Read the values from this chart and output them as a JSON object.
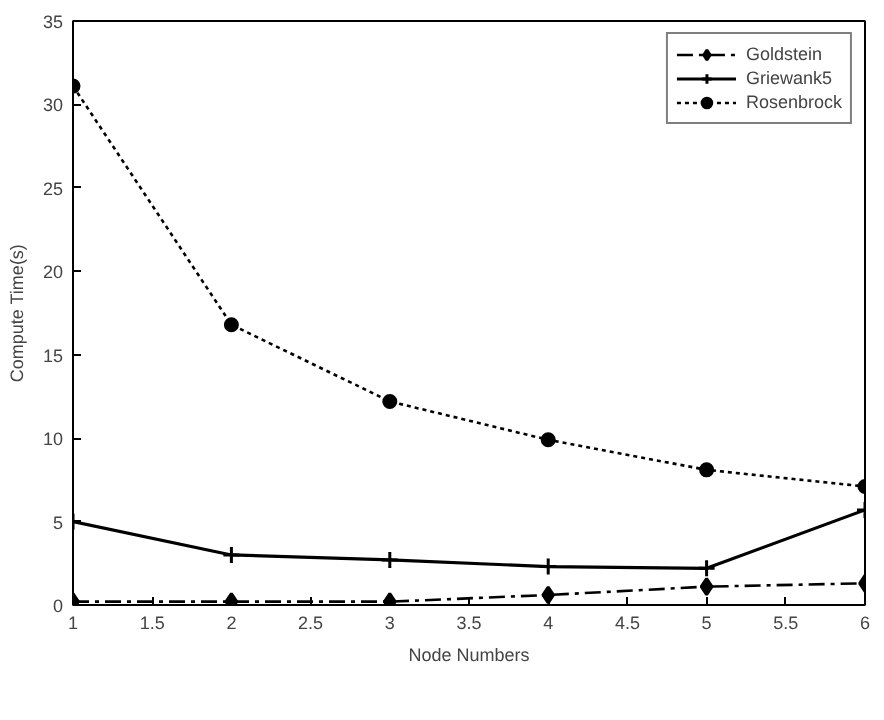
{
  "chart_data": {
    "type": "line",
    "xlabel": "Node Numbers",
    "ylabel": "Compute Time(s)",
    "x": [
      1,
      2,
      3,
      4,
      5,
      6
    ],
    "series": [
      {
        "name": "Goldstein",
        "color": "#000000",
        "values": [
          0.2,
          0.2,
          0.2,
          0.6,
          1.1,
          1.3
        ],
        "marker": "diamond",
        "line_style": "dashed"
      },
      {
        "name": "Griewank5",
        "color": "#000000",
        "values": [
          5.0,
          3.0,
          2.7,
          2.3,
          2.2,
          5.7
        ],
        "marker": "cross",
        "line_style": "solid"
      },
      {
        "name": "Rosenbrock",
        "color": "#000000",
        "values": [
          31.1,
          16.8,
          12.2,
          9.9,
          8.1,
          7.1
        ],
        "marker": "circle",
        "line_style": "dotted"
      }
    ],
    "xlim": [
      1,
      6
    ],
    "xticks": [
      1,
      1.5,
      2,
      2.5,
      3,
      3.5,
      4,
      4.5,
      5,
      5.5,
      6
    ],
    "ylim": [
      0,
      35
    ],
    "yticks": [
      0,
      5,
      10,
      15,
      20,
      25,
      30,
      35
    ],
    "grid": false,
    "legend": "top right"
  }
}
